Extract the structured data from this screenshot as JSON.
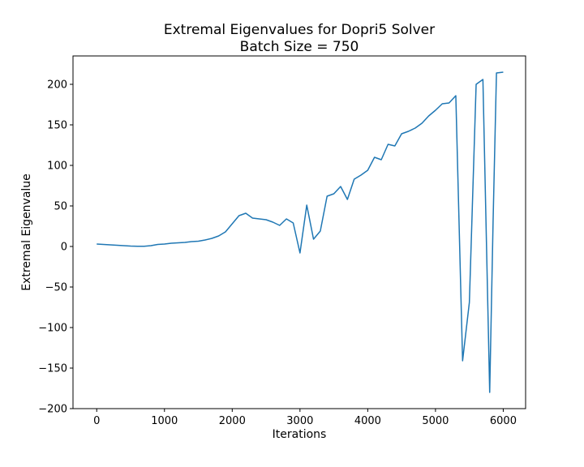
{
  "chart_data": {
    "type": "line",
    "title": "Extremal Eigenvalues for Dopri5 Solver",
    "subtitle": "Batch Size = 750",
    "xlabel": "Iterations",
    "ylabel": "Extremal Eigenvalue",
    "xlim": [
      -350,
      6330
    ],
    "ylim": [
      -200,
      235
    ],
    "xticks": [
      0,
      1000,
      2000,
      3000,
      4000,
      5000,
      6000
    ],
    "yticks": [
      -200,
      -150,
      -100,
      -50,
      0,
      50,
      100,
      150,
      200
    ],
    "grid": false,
    "color": "#1f77b4",
    "series": [
      {
        "x": [
          0,
          100,
          200,
          300,
          400,
          500,
          600,
          700,
          800,
          900,
          1000,
          1100,
          1200,
          1300,
          1400,
          1500,
          1600,
          1700,
          1800,
          1900,
          2000,
          2100,
          2200,
          2300,
          2400,
          2500,
          2600,
          2700,
          2800,
          2900,
          3000,
          3100,
          3200,
          3300,
          3400,
          3500,
          3600,
          3700,
          3800,
          3900,
          4000,
          4100,
          4200,
          4300,
          4400,
          4500,
          4600,
          4700,
          4800,
          4900,
          5000,
          5100,
          5200,
          5300,
          5400,
          5500,
          5600,
          5700,
          5800,
          5850,
          5900,
          6000
        ],
        "y": [
          3,
          2.5,
          2,
          1.5,
          1,
          0.5,
          0.3,
          0.2,
          1,
          2.5,
          3,
          4,
          4.5,
          5,
          6,
          6.5,
          8,
          10,
          13,
          18,
          28,
          38,
          41,
          35,
          34,
          33,
          30,
          26,
          34,
          29,
          -8,
          51,
          9,
          19,
          62,
          65,
          74,
          58,
          83,
          88,
          94,
          110,
          107,
          126,
          124,
          139,
          142,
          146,
          152,
          161,
          168,
          176,
          177,
          186,
          -141,
          -69,
          200,
          206,
          -180,
          30,
          214,
          215
        ]
      }
    ]
  }
}
